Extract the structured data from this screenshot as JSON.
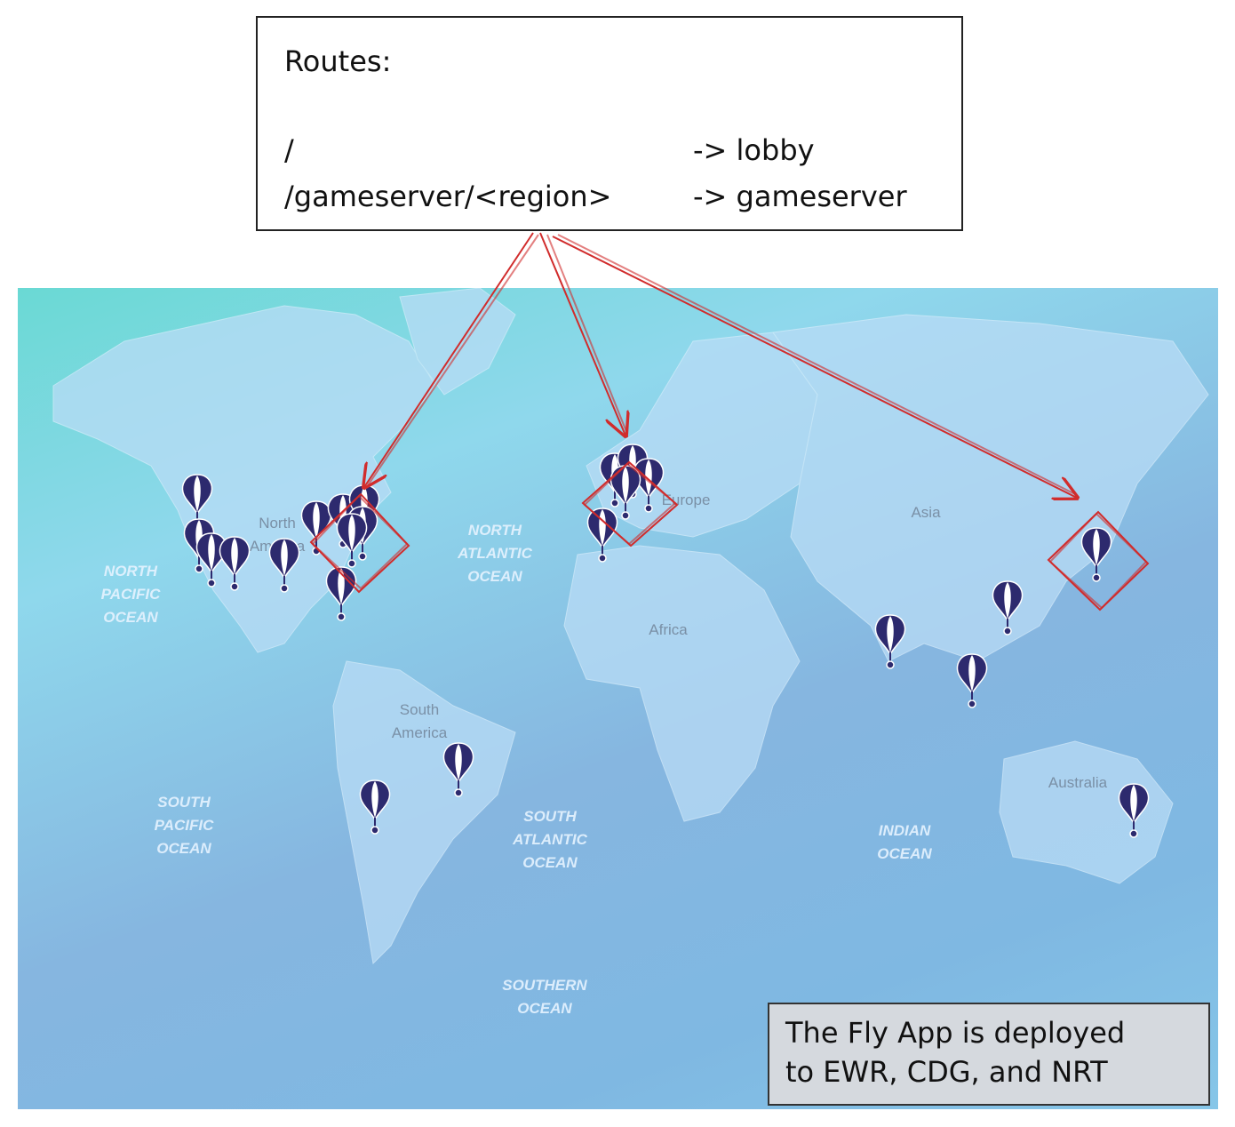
{
  "routes_box": {
    "title": "Routes:",
    "rows": [
      {
        "path": "/",
        "target": "-> lobby"
      },
      {
        "path": "/gameserver/<region>",
        "target": "-> gameserver"
      }
    ]
  },
  "map": {
    "ocean_labels": {
      "north_pacific": "NORTH\nPACIFIC\nOCEAN",
      "north_atlantic": "NORTH\nATLANTIC\nOCEAN",
      "south_pacific": "SOUTH\nPACIFIC\nOCEAN",
      "south_atlantic": "SOUTH\nATLANTIC\nOCEAN",
      "indian": "INDIAN\nOCEAN",
      "southern": "SOUTHERN\nOCEAN"
    },
    "land_labels": {
      "north_america": "North\nAmerica",
      "south_america": "South\nAmerica",
      "europe": "Europe",
      "africa": "Africa",
      "asia": "Asia",
      "australia": "Australia"
    },
    "colors": {
      "land": "#b9dcf6",
      "pin": "#2d2a6e",
      "highlight": "#d12c2c"
    },
    "pin_icon": "balloon-marker-icon"
  },
  "note": {
    "line1": "The Fly App is deployed",
    "line2": "to EWR, CDG, and NRT"
  }
}
